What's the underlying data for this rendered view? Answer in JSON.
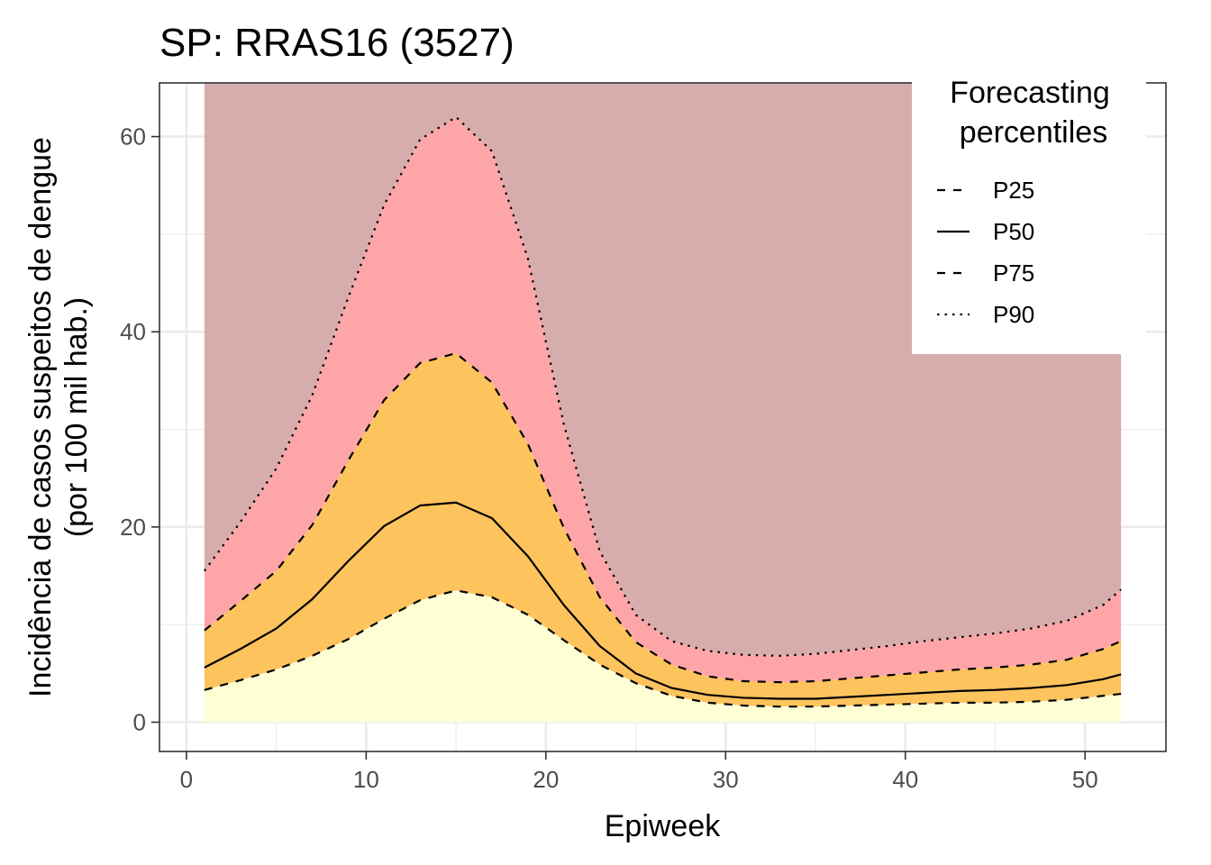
{
  "chart_data": {
    "type": "area",
    "title": "SP: RRAS16 (3527)",
    "xlabel": "Epiweek",
    "ylabel_lines": [
      "Incidência de casos suspeitos de dengue",
      "(por 100 mil hab.)"
    ],
    "xlim": [
      -1.5,
      54.5
    ],
    "ylim": [
      -3,
      65.5
    ],
    "x_ticks": [
      0,
      10,
      20,
      30,
      40,
      50
    ],
    "y_ticks": [
      0,
      20,
      40,
      60
    ],
    "grid": true,
    "legend": {
      "title_lines": [
        "Forecasting",
        "percentiles"
      ],
      "placement": "top-right",
      "entries": [
        {
          "label": "P25",
          "dash": "dashed"
        },
        {
          "label": "P50",
          "dash": "solid"
        },
        {
          "label": "P75",
          "dash": "dashed"
        },
        {
          "label": "P90",
          "dash": "dotted"
        }
      ]
    },
    "band_colors": {
      "below_p25": "#ffffd6",
      "p25_p75": "#fdc35d",
      "p75_p90": "#fea5a8",
      "above_p90": "#d4a5a6"
    },
    "band_top": 65.5,
    "x": [
      1,
      3,
      5,
      7,
      9,
      11,
      13,
      15,
      17,
      19,
      21,
      23,
      25,
      27,
      29,
      31,
      33,
      35,
      37,
      39,
      41,
      43,
      45,
      47,
      49,
      51,
      52
    ],
    "series": [
      {
        "name": "P25",
        "dash": "dashed",
        "values": [
          3.3,
          4.3,
          5.4,
          6.8,
          8.5,
          10.6,
          12.5,
          13.5,
          12.8,
          11.0,
          8.4,
          5.9,
          4.0,
          2.7,
          2.0,
          1.7,
          1.6,
          1.6,
          1.7,
          1.8,
          1.9,
          2.0,
          2.0,
          2.1,
          2.3,
          2.7,
          2.9
        ]
      },
      {
        "name": "P50",
        "dash": "solid",
        "values": [
          5.6,
          7.5,
          9.6,
          12.6,
          16.5,
          20.1,
          22.2,
          22.5,
          20.9,
          17.0,
          12.0,
          7.8,
          5.0,
          3.5,
          2.8,
          2.5,
          2.4,
          2.4,
          2.6,
          2.8,
          3.0,
          3.2,
          3.3,
          3.5,
          3.8,
          4.4,
          4.9
        ]
      },
      {
        "name": "P75",
        "dash": "dashed",
        "values": [
          9.4,
          12.4,
          15.5,
          20.2,
          26.8,
          33.0,
          36.8,
          37.8,
          34.8,
          28.5,
          19.9,
          12.8,
          8.2,
          5.9,
          4.7,
          4.2,
          4.1,
          4.2,
          4.5,
          4.8,
          5.1,
          5.4,
          5.6,
          5.9,
          6.4,
          7.5,
          8.3
        ]
      },
      {
        "name": "P90",
        "dash": "dotted",
        "values": [
          15.5,
          20.5,
          26.0,
          33.5,
          43.5,
          53.0,
          59.7,
          62.0,
          58.5,
          47.5,
          30.5,
          17.5,
          11.0,
          8.3,
          7.3,
          6.9,
          6.8,
          7.0,
          7.4,
          7.8,
          8.3,
          8.7,
          9.1,
          9.6,
          10.4,
          12.0,
          13.6
        ]
      }
    ]
  }
}
